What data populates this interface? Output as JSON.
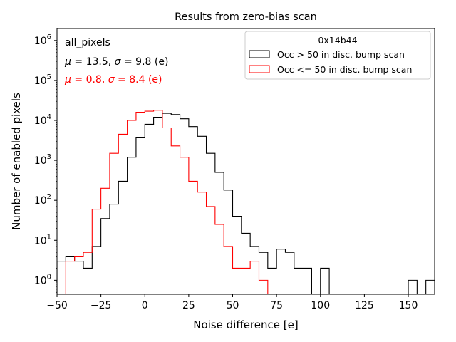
{
  "chart_data": {
    "type": "histogram",
    "title": "Results from zero-bias scan",
    "xlabel": "Noise difference [e]",
    "ylabel": "Number of enabled pixels",
    "xlim": [
      -50,
      165
    ],
    "ylim_log10": [
      -0.35,
      6.3
    ],
    "yscale": "log",
    "x_ticks": [
      -50,
      -25,
      0,
      25,
      50,
      75,
      100,
      125,
      150
    ],
    "x_tick_labels": [
      "−50",
      "−25",
      "0",
      "25",
      "50",
      "75",
      "100",
      "125",
      "150"
    ],
    "y_ticks_log10": [
      0,
      1,
      2,
      3,
      4,
      5,
      6
    ],
    "y_tick_labels": [
      {
        "base": "10",
        "exp": "0"
      },
      {
        "base": "10",
        "exp": "1"
      },
      {
        "base": "10",
        "exp": "2"
      },
      {
        "base": "10",
        "exp": "3"
      },
      {
        "base": "10",
        "exp": "4"
      },
      {
        "base": "10",
        "exp": "5"
      },
      {
        "base": "10",
        "exp": "6"
      }
    ],
    "bin_edges_start": -50,
    "bin_width": 5,
    "series": [
      {
        "name": "Occ > 50 in disc. bump scan",
        "color": "#000000",
        "values": [
          3,
          4,
          3,
          2,
          7,
          35,
          80,
          300,
          1200,
          3800,
          8000,
          12000,
          15000,
          14000,
          11000,
          7000,
          4000,
          1500,
          500,
          180,
          40,
          15,
          7,
          5,
          2,
          6,
          5,
          2,
          2,
          0,
          2,
          0,
          0,
          0,
          0,
          0,
          0,
          0,
          0,
          0,
          1,
          0,
          1
        ]
      },
      {
        "name": "Occ <= 50 in disc. bump scan",
        "color": "#ff0000",
        "values": [
          0,
          3,
          4,
          5,
          60,
          200,
          1500,
          4500,
          10000,
          16000,
          17000,
          18000,
          6500,
          2300,
          1200,
          300,
          160,
          70,
          25,
          7,
          2,
          2,
          3,
          1,
          0,
          0,
          0,
          0,
          0,
          0,
          0,
          0,
          0,
          0,
          0,
          0,
          0,
          0,
          0,
          0,
          0,
          0,
          0
        ]
      }
    ],
    "legend": {
      "title": "0x14b44",
      "placement": "top-right",
      "entries": [
        "Occ > 50 in disc. bump scan",
        "Occ <= 50 in disc. bump scan"
      ]
    },
    "annotations": {
      "label": "all_pixels",
      "black_line": {
        "mu": "13.5",
        "sigma": "9.8",
        "unit": "(e)",
        "color": "#000000"
      },
      "red_line": {
        "mu": "0.8",
        "sigma": "8.4",
        "unit": "(e)",
        "color": "#ff0000"
      }
    }
  }
}
